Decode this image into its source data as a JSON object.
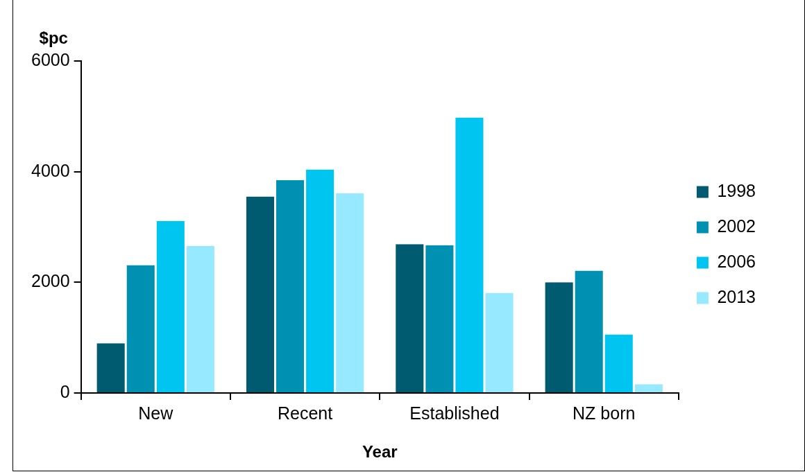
{
  "chart_data": {
    "type": "bar",
    "xlabel": "Year",
    "ylabel": "$pc",
    "categories": [
      "New",
      "Recent",
      "Established",
      "NZ born"
    ],
    "series": [
      {
        "name": "1998",
        "color": "#005b70",
        "values": [
          900,
          3550,
          2690,
          2000
        ]
      },
      {
        "name": "2002",
        "color": "#0090b2",
        "values": [
          2310,
          3850,
          2670,
          2210
        ]
      },
      {
        "name": "2006",
        "color": "#00c5f0",
        "values": [
          3110,
          4040,
          4980,
          1060
        ]
      },
      {
        "name": "2013",
        "color": "#96e9ff",
        "values": [
          2660,
          3610,
          1810,
          160
        ]
      }
    ],
    "ylim": [
      0,
      6000
    ],
    "yticks": [
      0,
      2000,
      4000,
      6000
    ],
    "grid": false,
    "legend": "right"
  }
}
